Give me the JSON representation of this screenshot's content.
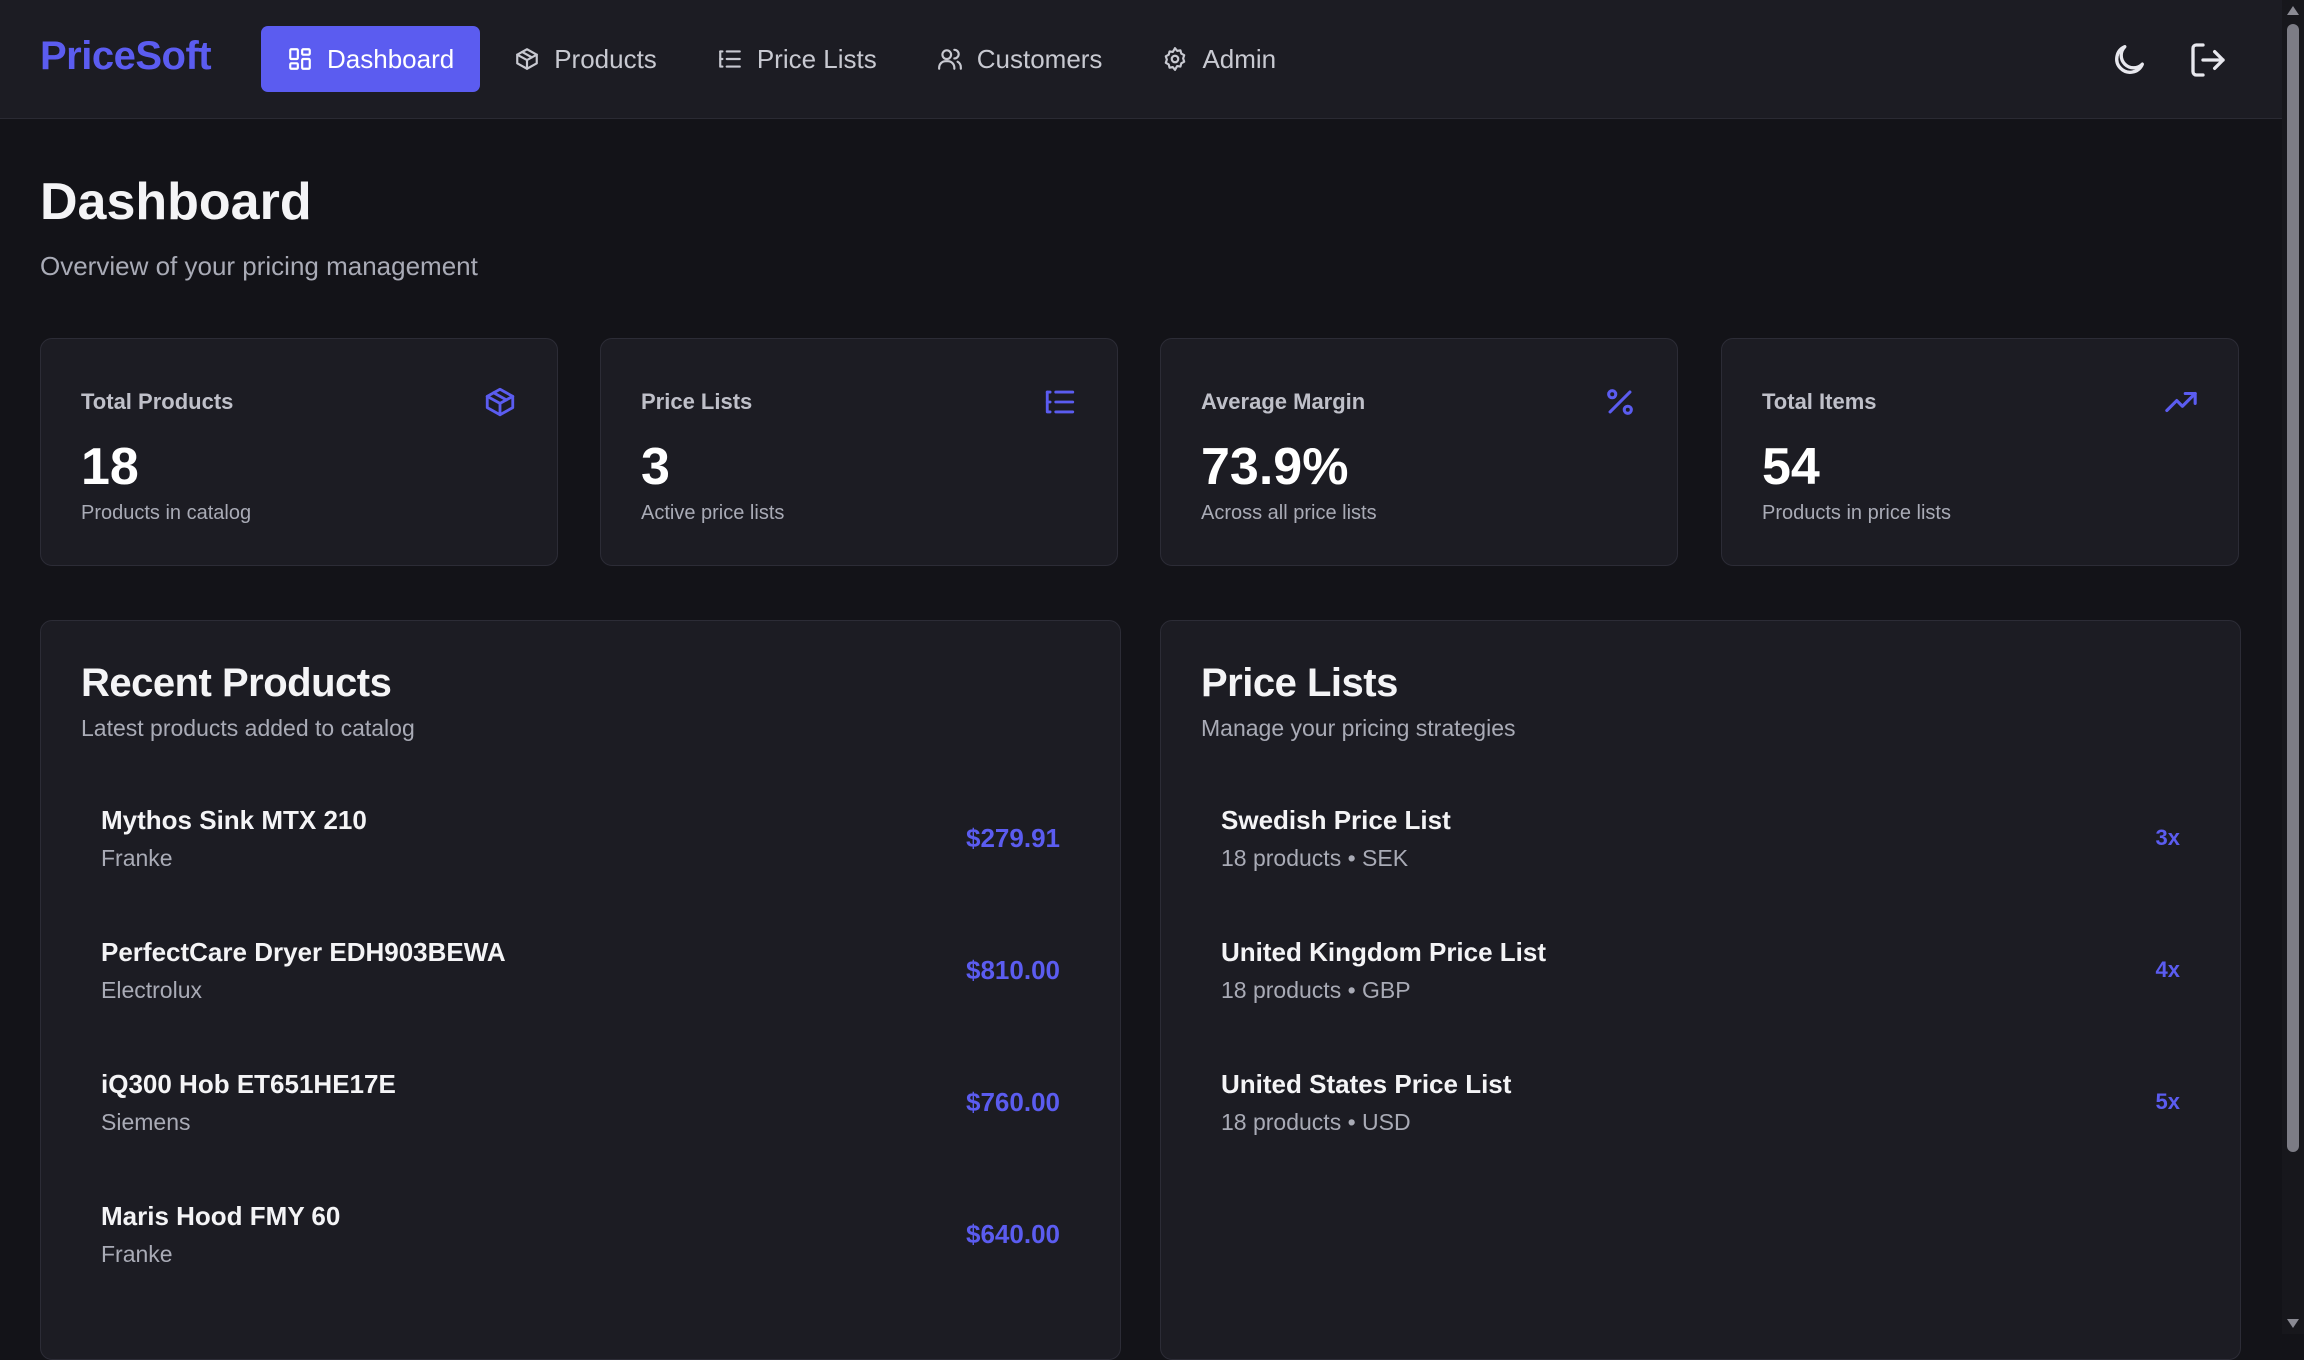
{
  "app": {
    "name": "PriceSoft"
  },
  "nav": {
    "items": [
      {
        "label": "Dashboard",
        "icon": "dashboard-grid-icon",
        "active": true
      },
      {
        "label": "Products",
        "icon": "box-icon"
      },
      {
        "label": "Price Lists",
        "icon": "list-icon"
      },
      {
        "label": "Customers",
        "icon": "users-icon"
      },
      {
        "label": "Admin",
        "icon": "gear-icon"
      }
    ],
    "actions": [
      {
        "icon": "moon-icon"
      },
      {
        "icon": "logout-icon"
      }
    ]
  },
  "page": {
    "title": "Dashboard",
    "subtitle": "Overview of your pricing management"
  },
  "stats": [
    {
      "label": "Total Products",
      "value": "18",
      "note": "Products in catalog",
      "icon": "box-icon"
    },
    {
      "label": "Price Lists",
      "value": "3",
      "note": "Active price lists",
      "icon": "list-icon"
    },
    {
      "label": "Average Margin",
      "value": "73.9%",
      "note": "Across all price lists",
      "icon": "percent-icon"
    },
    {
      "label": "Total Items",
      "value": "54",
      "note": "Products in price lists",
      "icon": "trending-up-icon"
    }
  ],
  "recent_products": {
    "title": "Recent Products",
    "subtitle": "Latest products added to catalog",
    "items": [
      {
        "name": "Mythos Sink MTX 210",
        "brand": "Franke",
        "price": "$279.91"
      },
      {
        "name": "PerfectCare Dryer EDH903BEWA",
        "brand": "Electrolux",
        "price": "$810.00"
      },
      {
        "name": "iQ300 Hob ET651HE17E",
        "brand": "Siemens",
        "price": "$760.00"
      },
      {
        "name": "Maris Hood FMY 60",
        "brand": "Franke",
        "price": "$640.00"
      }
    ]
  },
  "price_lists": {
    "title": "Price Lists",
    "subtitle": "Manage your pricing strategies",
    "items": [
      {
        "name": "Swedish Price List",
        "meta": "18 products • SEK",
        "multiplier": "3x"
      },
      {
        "name": "United Kingdom Price List",
        "meta": "18 products • GBP",
        "multiplier": "4x"
      },
      {
        "name": "United States Price List",
        "meta": "18 products • USD",
        "multiplier": "5x"
      }
    ]
  },
  "colors": {
    "accent": "#5b5cf0",
    "background": "#131318",
    "surface": "#1c1c23",
    "border": "#2c2c36",
    "text": "#f4f4f6",
    "muted": "#a9abb6"
  }
}
